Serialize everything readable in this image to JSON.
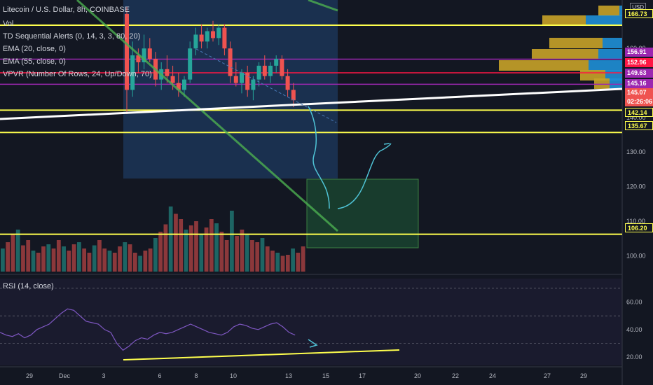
{
  "header": {
    "title": "Litecoin / U.S. Dollar, 8h, COINBASE",
    "indicators": [
      "Vol",
      "TD Sequential Alerts (0, 14, 3, 3, 80, 20)",
      "EMA (20, close, 0)",
      "EMA (55, close, 0)",
      "VPVR (Number Of Rows, 24, Up/Down, 70)"
    ],
    "rsi_label": "RSI (14, close)",
    "currency": "USD"
  },
  "colors": {
    "background": "#131722",
    "up": "#26a69a",
    "down": "#ef5350",
    "yellow_line": "#ffff4d",
    "purple_line": "#9c27b0",
    "red_line": "#ff1744",
    "trendline": "#4caf50",
    "rsi_line": "#7e57c2"
  },
  "chart_data": {
    "type": "candlestick",
    "x_ticks": [
      "29",
      "Dec",
      "3",
      "6",
      "8",
      "10",
      "13",
      "15",
      "17",
      "20",
      "22",
      "24",
      "27",
      "29"
    ],
    "price_axis": {
      "ticks": [
        100,
        110,
        120,
        130,
        140,
        150,
        160,
        170
      ],
      "ylim": [
        96,
        172
      ]
    },
    "price_labels": [
      {
        "value": "166.73",
        "color": "#ffff4d"
      },
      {
        "value": "156.91",
        "color": "#9c27b0"
      },
      {
        "value": "152.96",
        "color": "#ff1744"
      },
      {
        "value": "149.63",
        "color": "#9c27b0"
      },
      {
        "value": "145.16",
        "color": "#9c27b0"
      },
      {
        "value": "145.07",
        "color": "#ef5350"
      },
      {
        "value": "02:26:06",
        "color": "#ef5350"
      },
      {
        "value": "142.14",
        "color": "#ffff4d"
      },
      {
        "value": "135.67",
        "color": "#ffff4d"
      },
      {
        "value": "106.20",
        "color": "#ffff4d"
      }
    ],
    "horizontal_levels": [
      {
        "value": 166.73,
        "color": "#ffff4d"
      },
      {
        "value": 156.91,
        "color": "#9c27b0"
      },
      {
        "value": 152.96,
        "color": "#ff1744"
      },
      {
        "value": 149.63,
        "color": "#9c27b0"
      },
      {
        "value": 142.14,
        "color": "#ffff4d"
      },
      {
        "value": 135.67,
        "color": "#ffff4d"
      },
      {
        "value": 106.2,
        "color": "#ffff4d"
      }
    ],
    "candles": [
      {
        "o": 170,
        "h": 172,
        "l": 141,
        "c": 148
      },
      {
        "o": 148,
        "h": 162,
        "l": 146,
        "c": 158
      },
      {
        "o": 158,
        "h": 160,
        "l": 153,
        "c": 156
      },
      {
        "o": 156,
        "h": 164,
        "l": 154,
        "c": 160
      },
      {
        "o": 160,
        "h": 163,
        "l": 156,
        "c": 157
      },
      {
        "o": 157,
        "h": 159,
        "l": 149,
        "c": 151
      },
      {
        "o": 151,
        "h": 156,
        "l": 148,
        "c": 154
      },
      {
        "o": 154,
        "h": 158,
        "l": 150,
        "c": 152
      },
      {
        "o": 152,
        "h": 155,
        "l": 148,
        "c": 150
      },
      {
        "o": 150,
        "h": 153,
        "l": 146,
        "c": 148
      },
      {
        "o": 148,
        "h": 152,
        "l": 146,
        "c": 151
      },
      {
        "o": 151,
        "h": 162,
        "l": 150,
        "c": 160
      },
      {
        "o": 160,
        "h": 166,
        "l": 158,
        "c": 164
      },
      {
        "o": 164,
        "h": 167,
        "l": 160,
        "c": 162
      },
      {
        "o": 162,
        "h": 166,
        "l": 160,
        "c": 165
      },
      {
        "o": 165,
        "h": 168,
        "l": 162,
        "c": 163
      },
      {
        "o": 163,
        "h": 167,
        "l": 161,
        "c": 166
      },
      {
        "o": 166,
        "h": 167,
        "l": 158,
        "c": 160
      },
      {
        "o": 160,
        "h": 162,
        "l": 150,
        "c": 152
      },
      {
        "o": 152,
        "h": 156,
        "l": 149,
        "c": 150
      },
      {
        "o": 150,
        "h": 154,
        "l": 147,
        "c": 153
      },
      {
        "o": 153,
        "h": 155,
        "l": 146,
        "c": 148
      },
      {
        "o": 148,
        "h": 152,
        "l": 145,
        "c": 151
      },
      {
        "o": 151,
        "h": 156,
        "l": 149,
        "c": 155
      },
      {
        "o": 155,
        "h": 158,
        "l": 151,
        "c": 152
      },
      {
        "o": 152,
        "h": 156,
        "l": 150,
        "c": 155
      },
      {
        "o": 155,
        "h": 158,
        "l": 153,
        "c": 157
      },
      {
        "o": 157,
        "h": 158,
        "l": 151,
        "c": 152
      },
      {
        "o": 152,
        "h": 154,
        "l": 146,
        "c": 148
      },
      {
        "o": 148,
        "h": 150,
        "l": 143,
        "c": 145
      }
    ],
    "volume": [
      22,
      28,
      35,
      40,
      25,
      30,
      20,
      18,
      24,
      26,
      22,
      30,
      24,
      20,
      26,
      28,
      22,
      18,
      25,
      30,
      22,
      20,
      18,
      24,
      28,
      26,
      18,
      15,
      20,
      22,
      32,
      38,
      45,
      62,
      55,
      50,
      40,
      44,
      48,
      35,
      42,
      50,
      46,
      38,
      30,
      58,
      34,
      40,
      36,
      30,
      28,
      32,
      24,
      20,
      18,
      15,
      16,
      22,
      18,
      24
    ],
    "rsi": {
      "ticks": [
        20,
        40,
        60
      ],
      "ylim": [
        15,
        75
      ],
      "bands": [
        30,
        50,
        70
      ],
      "values": [
        38,
        36,
        35,
        37,
        34,
        36,
        40,
        42,
        44,
        48,
        52,
        55,
        54,
        50,
        46,
        45,
        44,
        40,
        38,
        30,
        25,
        28,
        32,
        34,
        33,
        36,
        38,
        37,
        38,
        40,
        42,
        44,
        42,
        40,
        38,
        37,
        36,
        38,
        42,
        44,
        43,
        41,
        40,
        42,
        44,
        45,
        42,
        38,
        36
      ]
    }
  }
}
